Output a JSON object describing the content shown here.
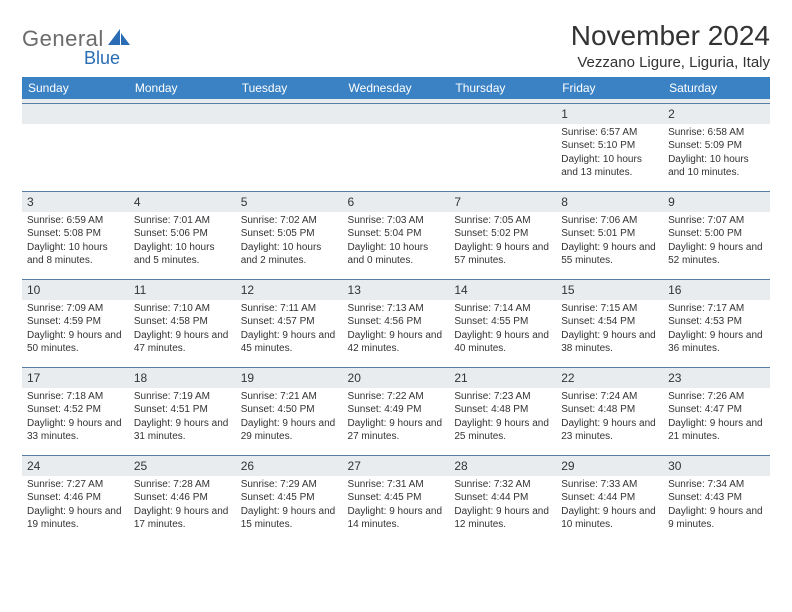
{
  "logo": {
    "word1": "General",
    "word2": "Blue"
  },
  "title": "November 2024",
  "location": "Vezzano Ligure, Liguria, Italy",
  "colors": {
    "header_bg": "#3a82c4",
    "header_text": "#ffffff",
    "border": "#5a7da5",
    "daynum_bg": "#e9ecef",
    "text": "#333333",
    "logo_gray": "#6b6b6b",
    "logo_blue": "#2a6db5"
  },
  "weekdays": [
    "Sunday",
    "Monday",
    "Tuesday",
    "Wednesday",
    "Thursday",
    "Friday",
    "Saturday"
  ],
  "weeks": [
    [
      null,
      null,
      null,
      null,
      null,
      {
        "n": "1",
        "sunrise": "6:57 AM",
        "sunset": "5:10 PM",
        "daylight": "10 hours and 13 minutes."
      },
      {
        "n": "2",
        "sunrise": "6:58 AM",
        "sunset": "5:09 PM",
        "daylight": "10 hours and 10 minutes."
      }
    ],
    [
      {
        "n": "3",
        "sunrise": "6:59 AM",
        "sunset": "5:08 PM",
        "daylight": "10 hours and 8 minutes."
      },
      {
        "n": "4",
        "sunrise": "7:01 AM",
        "sunset": "5:06 PM",
        "daylight": "10 hours and 5 minutes."
      },
      {
        "n": "5",
        "sunrise": "7:02 AM",
        "sunset": "5:05 PM",
        "daylight": "10 hours and 2 minutes."
      },
      {
        "n": "6",
        "sunrise": "7:03 AM",
        "sunset": "5:04 PM",
        "daylight": "10 hours and 0 minutes."
      },
      {
        "n": "7",
        "sunrise": "7:05 AM",
        "sunset": "5:02 PM",
        "daylight": "9 hours and 57 minutes."
      },
      {
        "n": "8",
        "sunrise": "7:06 AM",
        "sunset": "5:01 PM",
        "daylight": "9 hours and 55 minutes."
      },
      {
        "n": "9",
        "sunrise": "7:07 AM",
        "sunset": "5:00 PM",
        "daylight": "9 hours and 52 minutes."
      }
    ],
    [
      {
        "n": "10",
        "sunrise": "7:09 AM",
        "sunset": "4:59 PM",
        "daylight": "9 hours and 50 minutes."
      },
      {
        "n": "11",
        "sunrise": "7:10 AM",
        "sunset": "4:58 PM",
        "daylight": "9 hours and 47 minutes."
      },
      {
        "n": "12",
        "sunrise": "7:11 AM",
        "sunset": "4:57 PM",
        "daylight": "9 hours and 45 minutes."
      },
      {
        "n": "13",
        "sunrise": "7:13 AM",
        "sunset": "4:56 PM",
        "daylight": "9 hours and 42 minutes."
      },
      {
        "n": "14",
        "sunrise": "7:14 AM",
        "sunset": "4:55 PM",
        "daylight": "9 hours and 40 minutes."
      },
      {
        "n": "15",
        "sunrise": "7:15 AM",
        "sunset": "4:54 PM",
        "daylight": "9 hours and 38 minutes."
      },
      {
        "n": "16",
        "sunrise": "7:17 AM",
        "sunset": "4:53 PM",
        "daylight": "9 hours and 36 minutes."
      }
    ],
    [
      {
        "n": "17",
        "sunrise": "7:18 AM",
        "sunset": "4:52 PM",
        "daylight": "9 hours and 33 minutes."
      },
      {
        "n": "18",
        "sunrise": "7:19 AM",
        "sunset": "4:51 PM",
        "daylight": "9 hours and 31 minutes."
      },
      {
        "n": "19",
        "sunrise": "7:21 AM",
        "sunset": "4:50 PM",
        "daylight": "9 hours and 29 minutes."
      },
      {
        "n": "20",
        "sunrise": "7:22 AM",
        "sunset": "4:49 PM",
        "daylight": "9 hours and 27 minutes."
      },
      {
        "n": "21",
        "sunrise": "7:23 AM",
        "sunset": "4:48 PM",
        "daylight": "9 hours and 25 minutes."
      },
      {
        "n": "22",
        "sunrise": "7:24 AM",
        "sunset": "4:48 PM",
        "daylight": "9 hours and 23 minutes."
      },
      {
        "n": "23",
        "sunrise": "7:26 AM",
        "sunset": "4:47 PM",
        "daylight": "9 hours and 21 minutes."
      }
    ],
    [
      {
        "n": "24",
        "sunrise": "7:27 AM",
        "sunset": "4:46 PM",
        "daylight": "9 hours and 19 minutes."
      },
      {
        "n": "25",
        "sunrise": "7:28 AM",
        "sunset": "4:46 PM",
        "daylight": "9 hours and 17 minutes."
      },
      {
        "n": "26",
        "sunrise": "7:29 AM",
        "sunset": "4:45 PM",
        "daylight": "9 hours and 15 minutes."
      },
      {
        "n": "27",
        "sunrise": "7:31 AM",
        "sunset": "4:45 PM",
        "daylight": "9 hours and 14 minutes."
      },
      {
        "n": "28",
        "sunrise": "7:32 AM",
        "sunset": "4:44 PM",
        "daylight": "9 hours and 12 minutes."
      },
      {
        "n": "29",
        "sunrise": "7:33 AM",
        "sunset": "4:44 PM",
        "daylight": "9 hours and 10 minutes."
      },
      {
        "n": "30",
        "sunrise": "7:34 AM",
        "sunset": "4:43 PM",
        "daylight": "9 hours and 9 minutes."
      }
    ]
  ],
  "labels": {
    "sunrise": "Sunrise:",
    "sunset": "Sunset:",
    "daylight": "Daylight:"
  }
}
